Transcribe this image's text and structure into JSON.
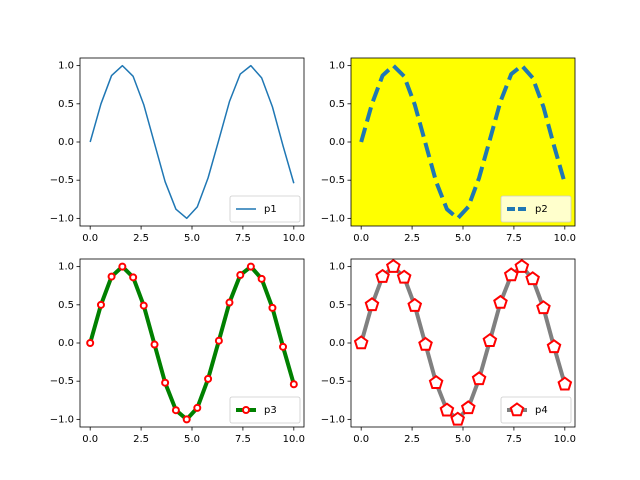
{
  "chart_data": [
    {
      "type": "line",
      "x": [
        0,
        0.53,
        1.05,
        1.58,
        2.11,
        2.63,
        3.16,
        3.68,
        4.21,
        4.74,
        5.26,
        5.79,
        6.32,
        6.84,
        7.37,
        7.89,
        8.42,
        8.95,
        9.47,
        10
      ],
      "series": [
        {
          "name": "p1",
          "color": "#1f77b4",
          "linestyle": "solid",
          "line_weight": "thin",
          "values": [
            0,
            0.5,
            0.87,
            1.0,
            0.86,
            0.49,
            -0.02,
            -0.52,
            -0.88,
            -1.0,
            -0.85,
            -0.47,
            0.03,
            0.53,
            0.89,
            1.0,
            0.84,
            0.46,
            -0.05,
            -0.54
          ]
        }
      ],
      "xlim": [
        -0.5,
        10.5
      ],
      "ylim": [
        -1.1,
        1.1
      ],
      "xticks": [
        {
          "value": 0,
          "label": "0.0"
        },
        {
          "value": 2.5,
          "label": "2.5"
        },
        {
          "value": 5,
          "label": "5.0"
        },
        {
          "value": 7.5,
          "label": "7.5"
        },
        {
          "value": 10,
          "label": "10.0"
        }
      ],
      "yticks": [
        {
          "value": -1,
          "label": "−1.0"
        },
        {
          "value": -0.5,
          "label": "−0.5"
        },
        {
          "value": 0,
          "label": "0.0"
        },
        {
          "value": 0.5,
          "label": "0.5"
        },
        {
          "value": 1,
          "label": "1.0"
        }
      ],
      "legend": "lower right",
      "background": "#ffffff"
    },
    {
      "type": "line",
      "x": [
        0,
        0.53,
        1.05,
        1.58,
        2.11,
        2.63,
        3.16,
        3.68,
        4.21,
        4.74,
        5.26,
        5.79,
        6.32,
        6.84,
        7.37,
        7.89,
        8.42,
        8.95,
        9.47,
        10
      ],
      "series": [
        {
          "name": "p2",
          "color": "#1f77b4",
          "linestyle": "dashed",
          "line_weight": "thick",
          "values": [
            0,
            0.5,
            0.87,
            1.0,
            0.86,
            0.49,
            -0.02,
            -0.52,
            -0.88,
            -1.0,
            -0.85,
            -0.47,
            0.03,
            0.53,
            0.89,
            1.0,
            0.84,
            0.46,
            -0.05,
            -0.54
          ]
        }
      ],
      "xlim": [
        -0.5,
        10.5
      ],
      "ylim": [
        -1.1,
        1.1
      ],
      "xticks": [
        {
          "value": 0,
          "label": "0.0"
        },
        {
          "value": 2.5,
          "label": "2.5"
        },
        {
          "value": 5,
          "label": "5.0"
        },
        {
          "value": 7.5,
          "label": "7.5"
        },
        {
          "value": 10,
          "label": "10.0"
        }
      ],
      "yticks": [
        {
          "value": -1,
          "label": "−1.0"
        },
        {
          "value": -0.5,
          "label": "−0.5"
        },
        {
          "value": 0,
          "label": "0.0"
        },
        {
          "value": 0.5,
          "label": "0.5"
        },
        {
          "value": 1,
          "label": "1.0"
        }
      ],
      "legend": "lower right",
      "background": "#ffff00"
    },
    {
      "type": "line",
      "x": [
        0,
        0.53,
        1.05,
        1.58,
        2.11,
        2.63,
        3.16,
        3.68,
        4.21,
        4.74,
        5.26,
        5.79,
        6.32,
        6.84,
        7.37,
        7.89,
        8.42,
        8.95,
        9.47,
        10
      ],
      "series": [
        {
          "name": "p3",
          "color": "#008000",
          "linestyle": "solid",
          "line_weight": "thick",
          "marker": "circle",
          "marker_color": "#ff0000",
          "marker_face": "#ffffff",
          "values": [
            0,
            0.5,
            0.87,
            1.0,
            0.86,
            0.49,
            -0.02,
            -0.52,
            -0.88,
            -1.0,
            -0.85,
            -0.47,
            0.03,
            0.53,
            0.89,
            1.0,
            0.84,
            0.46,
            -0.05,
            -0.54
          ]
        }
      ],
      "xlim": [
        -0.5,
        10.5
      ],
      "ylim": [
        -1.1,
        1.1
      ],
      "xticks": [
        {
          "value": 0,
          "label": "0.0"
        },
        {
          "value": 2.5,
          "label": "2.5"
        },
        {
          "value": 5,
          "label": "5.0"
        },
        {
          "value": 7.5,
          "label": "7.5"
        },
        {
          "value": 10,
          "label": "10.0"
        }
      ],
      "yticks": [
        {
          "value": -1,
          "label": "−1.0"
        },
        {
          "value": -0.5,
          "label": "−0.5"
        },
        {
          "value": 0,
          "label": "0.0"
        },
        {
          "value": 0.5,
          "label": "0.5"
        },
        {
          "value": 1,
          "label": "1.0"
        }
      ],
      "legend": "lower right",
      "background": "#ffffff"
    },
    {
      "type": "line",
      "x": [
        0,
        0.53,
        1.05,
        1.58,
        2.11,
        2.63,
        3.16,
        3.68,
        4.21,
        4.74,
        5.26,
        5.79,
        6.32,
        6.84,
        7.37,
        7.89,
        8.42,
        8.95,
        9.47,
        10
      ],
      "series": [
        {
          "name": "p4",
          "color": "#808080",
          "linestyle": "solid",
          "line_weight": "thick",
          "marker": "pentagon",
          "marker_color": "#ff0000",
          "marker_face": "#ffffff",
          "values": [
            0,
            0.5,
            0.87,
            1.0,
            0.86,
            0.49,
            -0.02,
            -0.52,
            -0.88,
            -1.0,
            -0.85,
            -0.47,
            0.03,
            0.53,
            0.89,
            1.0,
            0.84,
            0.46,
            -0.05,
            -0.54
          ]
        }
      ],
      "xlim": [
        -0.5,
        10.5
      ],
      "ylim": [
        -1.1,
        1.1
      ],
      "xticks": [
        {
          "value": 0,
          "label": "0.0"
        },
        {
          "value": 2.5,
          "label": "2.5"
        },
        {
          "value": 5,
          "label": "5.0"
        },
        {
          "value": 7.5,
          "label": "7.5"
        },
        {
          "value": 10,
          "label": "10.0"
        }
      ],
      "yticks": [
        {
          "value": -1,
          "label": "−1.0"
        },
        {
          "value": -0.5,
          "label": "−0.5"
        },
        {
          "value": 0,
          "label": "0.0"
        },
        {
          "value": 0.5,
          "label": "0.5"
        },
        {
          "value": 1,
          "label": "1.0"
        }
      ],
      "legend": "lower right",
      "background": "#ffffff"
    }
  ]
}
